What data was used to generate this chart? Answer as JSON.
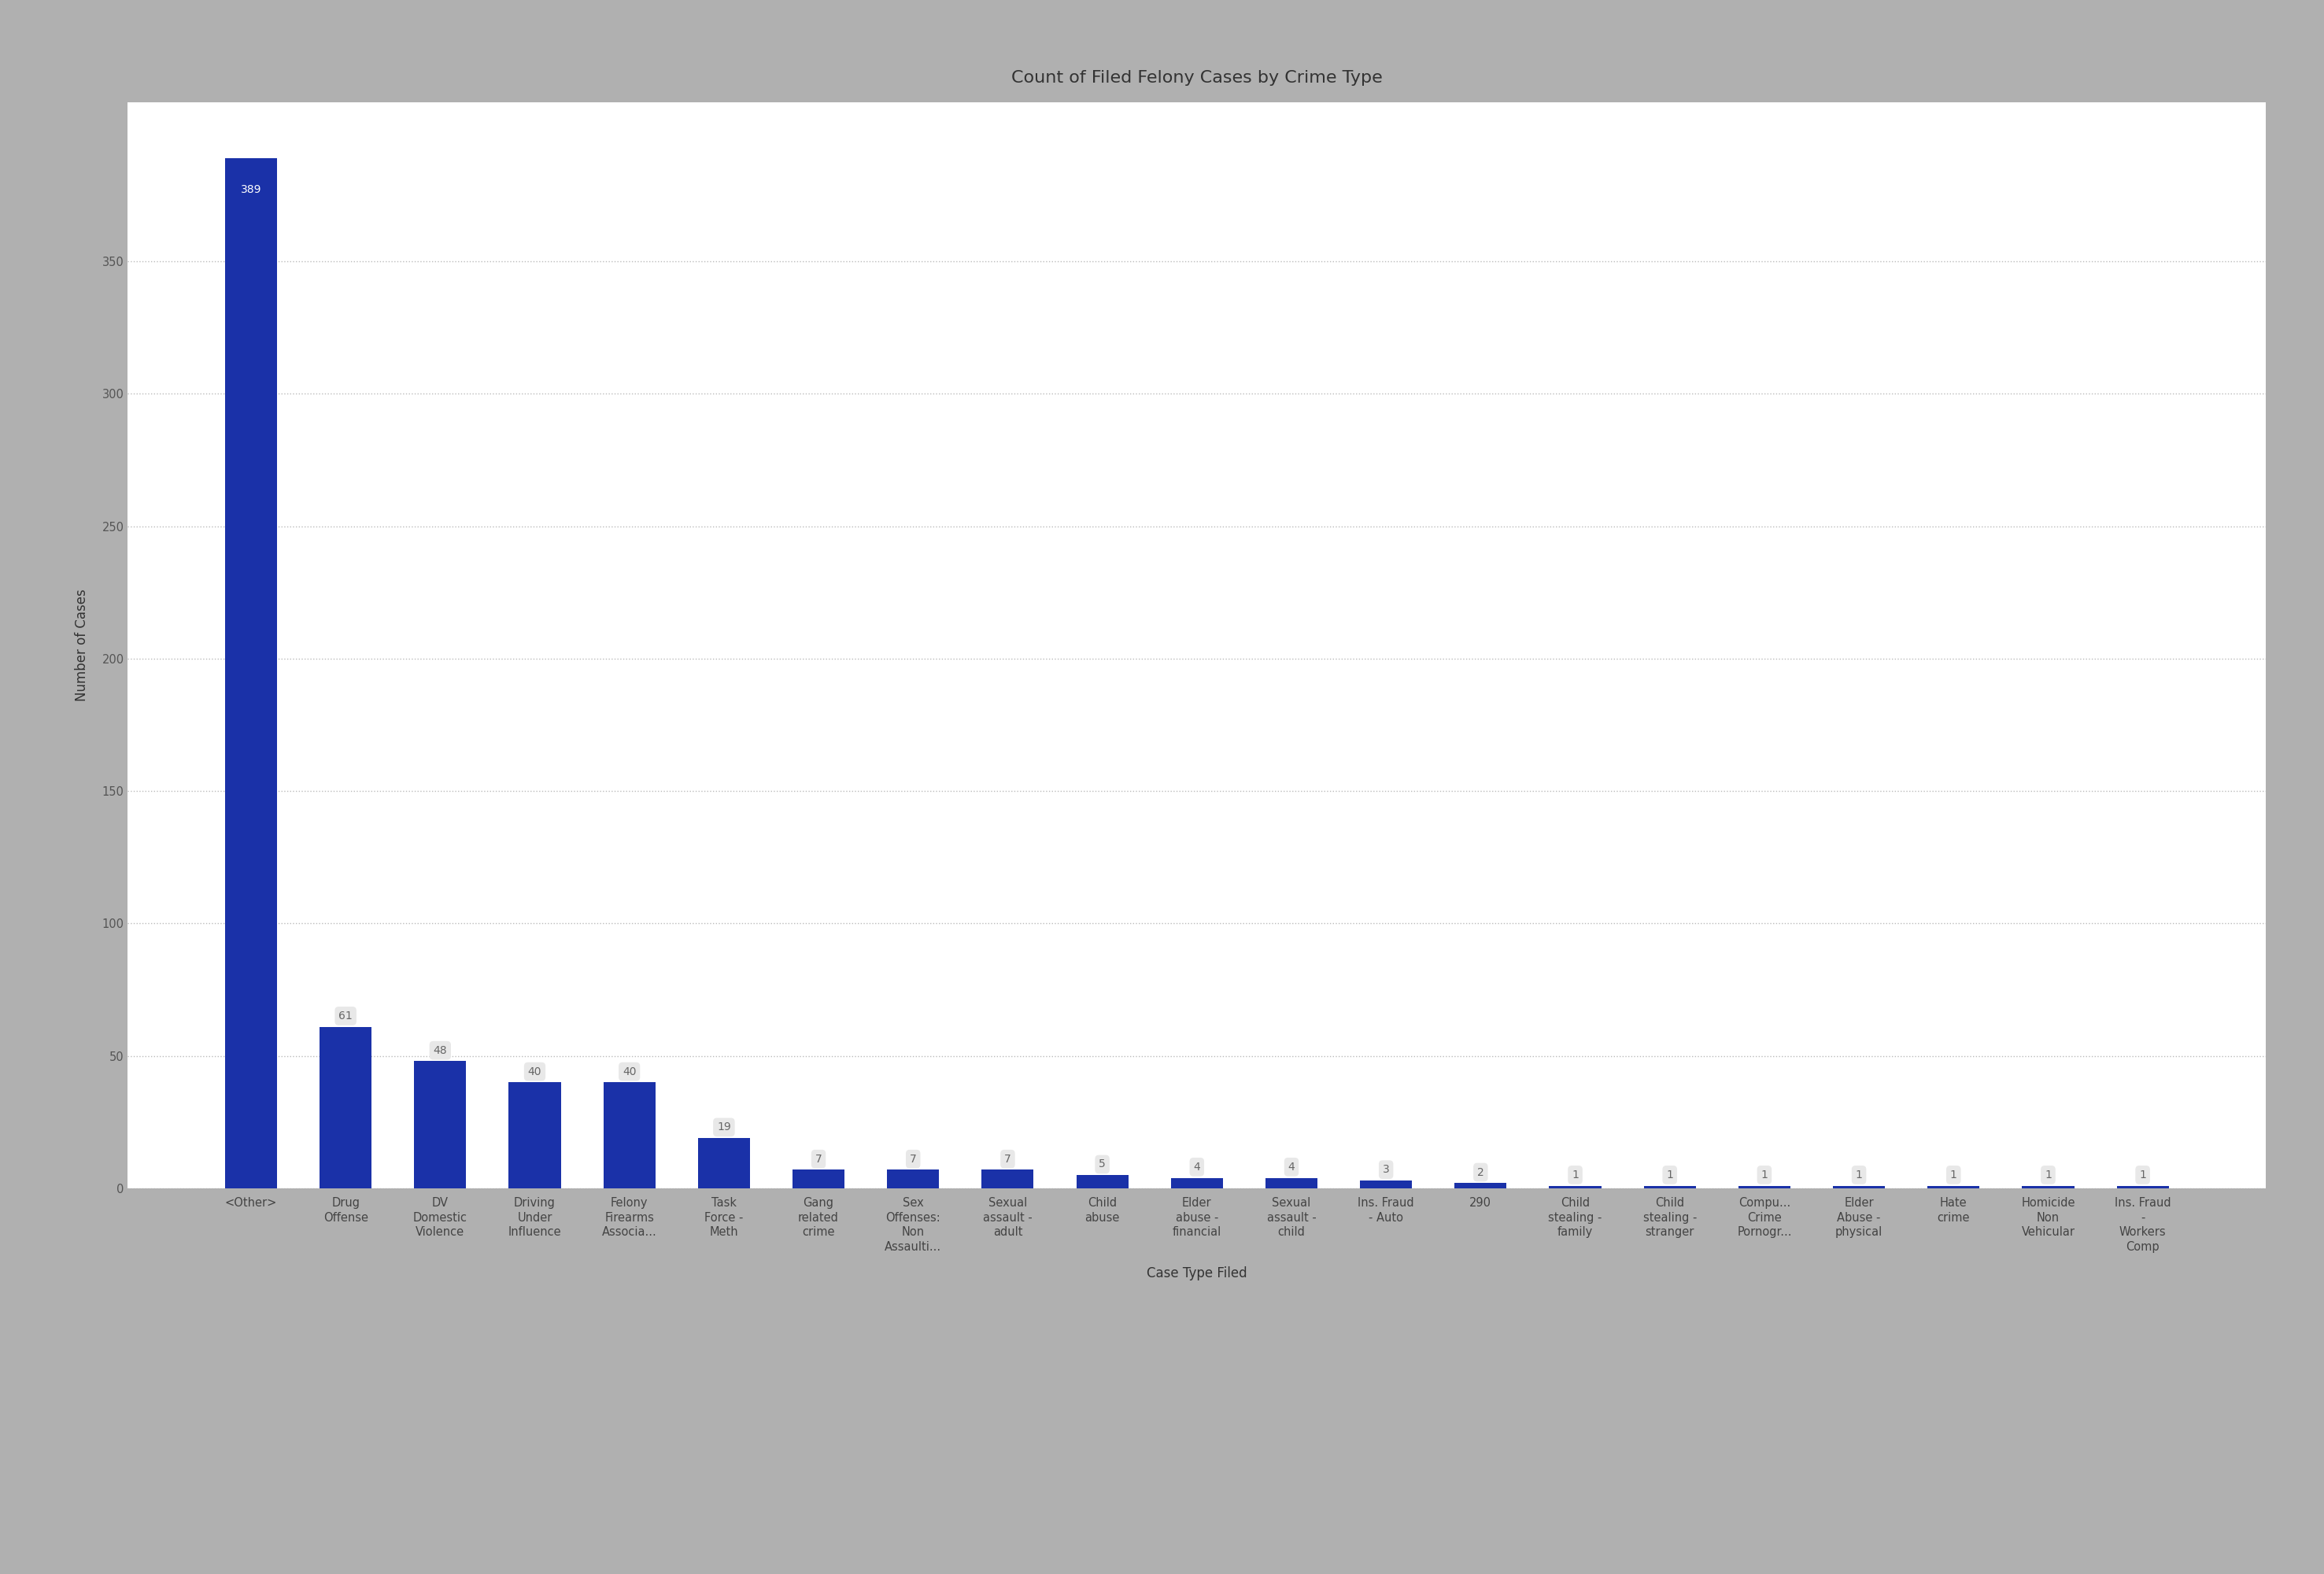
{
  "title": "Count of Filed Felony Cases by Crime Type",
  "xlabel": "Case Type Filed",
  "ylabel": "Number of Cases",
  "bar_color": "#1a31a8",
  "label_bg_color": "#e8e8e8",
  "label_text_color_light": "#ffffff",
  "label_text_color_dark": "#666666",
  "background_color": "#ffffff",
  "outer_background": "#b0b0b0",
  "categories": [
    "<Other>",
    "Drug\nOffense",
    "DV\nDomestic\nViolence",
    "Driving\nUnder\nInfluence",
    "Felony\nFirearms\nAssocia...",
    "Task\nForce -\nMeth",
    "Gang\nrelated\ncrime",
    "Sex\nOffenses:\nNon\nAssaulti...",
    "Sexual\nassault -\nadult",
    "Child\nabuse",
    "Elder\nabuse -\nfinancial",
    "Sexual\nassault -\nchild",
    "Ins. Fraud\n- Auto",
    "290",
    "Child\nstealing -\nfamily",
    "Child\nstealing -\nstranger",
    "Compu...\nCrime\nPornogr...",
    "Elder\nAbuse -\nphysical",
    "Hate\ncrime",
    "Homicide\nNon\nVehicular",
    "Ins. Fraud\n-\nWorkers\nComp"
  ],
  "values": [
    389,
    61,
    48,
    40,
    40,
    19,
    7,
    7,
    7,
    5,
    4,
    4,
    3,
    2,
    1,
    1,
    1,
    1,
    1,
    1,
    1
  ],
  "ylim": [
    0,
    410
  ],
  "yticks": [
    0,
    50,
    100,
    150,
    200,
    250,
    300,
    350
  ],
  "grid_color": "#bbbbbb",
  "grid_style": ":",
  "title_fontsize": 16,
  "axis_label_fontsize": 12,
  "tick_fontsize": 10.5,
  "bar_label_fontsize": 10
}
